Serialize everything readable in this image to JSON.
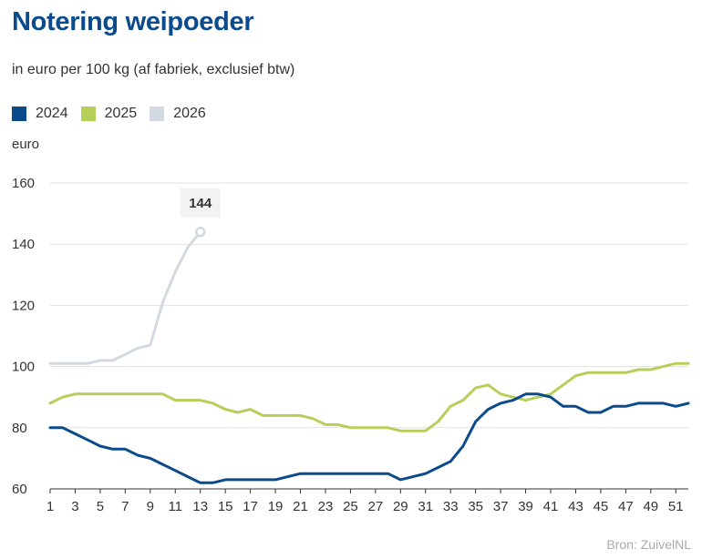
{
  "title": "Notering weipoeder",
  "subtitle": "in euro per 100 kg (af fabriek, exclusief btw)",
  "source": "Bron:  ZuivelNL",
  "chart_data": {
    "type": "line",
    "title": "Notering weipoeder",
    "ylabel": "euro",
    "xlabel": "",
    "ylim": [
      60,
      160
    ],
    "xlim": [
      1,
      52
    ],
    "yticks": [
      60,
      80,
      100,
      120,
      140,
      160
    ],
    "xticks": [
      1,
      3,
      5,
      7,
      9,
      11,
      13,
      15,
      17,
      19,
      21,
      23,
      25,
      27,
      29,
      31,
      33,
      35,
      37,
      39,
      41,
      43,
      45,
      47,
      49,
      51
    ],
    "grid": true,
    "legend_position": "top-left",
    "series": [
      {
        "name": "2024",
        "color": "#0b4a8b",
        "x": [
          1,
          2,
          3,
          4,
          5,
          6,
          7,
          8,
          9,
          10,
          11,
          12,
          13,
          14,
          15,
          16,
          17,
          18,
          19,
          20,
          21,
          22,
          23,
          24,
          25,
          26,
          27,
          28,
          29,
          30,
          31,
          32,
          33,
          34,
          35,
          36,
          37,
          38,
          39,
          40,
          41,
          42,
          43,
          44,
          45,
          46,
          47,
          48,
          49,
          50,
          51,
          52
        ],
        "values": [
          80,
          80,
          78,
          76,
          74,
          73,
          73,
          71,
          70,
          68,
          66,
          64,
          62,
          62,
          63,
          63,
          63,
          63,
          63,
          64,
          65,
          65,
          65,
          65,
          65,
          65,
          65,
          65,
          63,
          64,
          65,
          67,
          69,
          74,
          82,
          86,
          88,
          89,
          91,
          91,
          90,
          87,
          87,
          85,
          85,
          87,
          87,
          88,
          88,
          88,
          87,
          88
        ]
      },
      {
        "name": "2025",
        "color": "#b5cf5a",
        "x": [
          1,
          2,
          3,
          4,
          5,
          6,
          7,
          8,
          9,
          10,
          11,
          12,
          13,
          14,
          15,
          16,
          17,
          18,
          19,
          20,
          21,
          22,
          23,
          24,
          25,
          26,
          27,
          28,
          29,
          30,
          31,
          32,
          33,
          34,
          35,
          36,
          37,
          38,
          39,
          40,
          41,
          42,
          43,
          44,
          45,
          46,
          47,
          48,
          49,
          50,
          51,
          52
        ],
        "values": [
          88,
          90,
          91,
          91,
          91,
          91,
          91,
          91,
          91,
          91,
          89,
          89,
          89,
          88,
          86,
          85,
          86,
          84,
          84,
          84,
          84,
          83,
          81,
          81,
          80,
          80,
          80,
          80,
          79,
          79,
          79,
          82,
          87,
          89,
          93,
          94,
          91,
          90,
          89,
          90,
          91,
          94,
          97,
          98,
          98,
          98,
          98,
          99,
          99,
          100,
          101,
          101
        ]
      },
      {
        "name": "2026",
        "color": "#d3d9e1",
        "x": [
          1,
          2,
          3,
          4,
          5,
          6,
          7,
          8,
          9,
          10,
          11,
          12,
          13
        ],
        "values": [
          101,
          101,
          101,
          101,
          102,
          102,
          104,
          106,
          107,
          121,
          131,
          139,
          144
        ]
      }
    ],
    "annotation": {
      "series": "2026",
      "x": 13,
      "value": 144,
      "label": "144"
    }
  }
}
